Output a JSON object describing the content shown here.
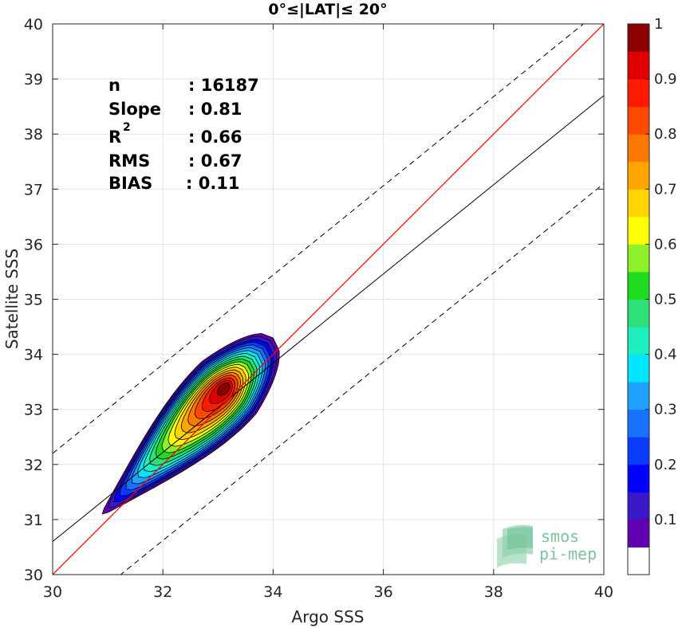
{
  "chart_data": {
    "type": "contour-density",
    "title": "0°≤|LAT|≤ 20°",
    "xlabel": "Argo SSS",
    "ylabel": "Satellite SSS",
    "xlim": [
      30,
      40
    ],
    "ylim": [
      30,
      40
    ],
    "xticks": [
      "30",
      "32",
      "34",
      "36",
      "38",
      "40"
    ],
    "yticks": [
      "30",
      "31",
      "32",
      "33",
      "34",
      "35",
      "36",
      "37",
      "38",
      "39",
      "40"
    ],
    "grid": true,
    "stats": [
      {
        "label": "n",
        "value": ": 16187"
      },
      {
        "label": "Slope",
        "value": ": 0.81"
      },
      {
        "label": "R",
        "sup": "2",
        "value": ": 0.66"
      },
      {
        "label": "RMS",
        "value": ": 0.67"
      },
      {
        "label": "BIAS",
        "value": ": 0.11"
      }
    ],
    "lines": {
      "identity": {
        "slope": 1,
        "intercept": 0,
        "color": "#ff0000"
      },
      "regression": {
        "slope": 0.81,
        "intercept": 6.3,
        "color": "#000000"
      },
      "bounds": {
        "slope": 0.81,
        "intercepts": [
          7.9,
          4.7
        ],
        "style": "dashed",
        "color": "#000000"
      }
    },
    "density_center": {
      "x": 33.3,
      "y": 33.3
    },
    "density_axis": {
      "start": [
        30.9,
        31.1
      ],
      "end": [
        34.0,
        34.3
      ]
    },
    "density_levels": [
      0.05,
      0.1,
      0.15,
      0.2,
      0.25,
      0.3,
      0.35,
      0.4,
      0.45,
      0.5,
      0.55,
      0.6,
      0.65,
      0.7,
      0.75,
      0.8,
      0.85,
      0.9,
      0.95
    ],
    "colorbar": {
      "ticks": [
        "0.1",
        "0.2",
        "0.3",
        "0.4",
        "0.5",
        "0.6",
        "0.7",
        "0.8",
        "0.9",
        "1"
      ],
      "tick_values": [
        0.1,
        0.2,
        0.3,
        0.4,
        0.5,
        0.6,
        0.7,
        0.8,
        0.9,
        1.0
      ],
      "colors": [
        "#ffffff",
        "#6000b0",
        "#3a18c8",
        "#0000ff",
        "#0a3cff",
        "#1672ff",
        "#1fa2ff",
        "#00e6ff",
        "#1eefc0",
        "#2ee07a",
        "#1edc1e",
        "#8ef028",
        "#ffff00",
        "#ffd400",
        "#ffa500",
        "#ff7800",
        "#ff4800",
        "#ff1a00",
        "#e00000",
        "#8b0000"
      ]
    },
    "logo": {
      "line1": "smos",
      "line2": "pi-mep"
    }
  }
}
